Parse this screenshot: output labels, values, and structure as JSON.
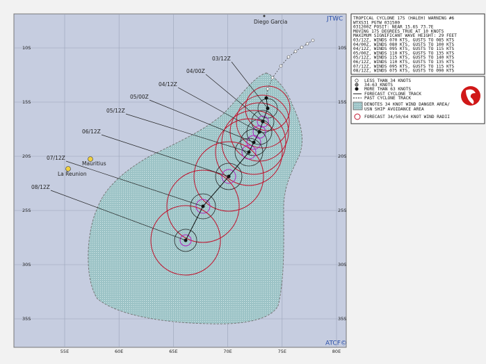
{
  "header": {
    "agency": "JTWC",
    "credit": "ATCF©"
  },
  "places": [
    "Diego Garcia",
    "Mauritius",
    "La Reunion"
  ],
  "grid": {
    "lat_labels": [
      "10S",
      "15S",
      "20S",
      "25S",
      "30S",
      "35S"
    ],
    "lon_labels": [
      "55E",
      "60E",
      "65E",
      "70E",
      "75E",
      "80E"
    ]
  },
  "track_labels": [
    "03/12Z",
    "04/00Z",
    "04/12Z",
    "05/00Z",
    "05/12Z",
    "06/12Z",
    "07/12Z",
    "08/12Z"
  ],
  "warning": {
    "lines": [
      "TROPICAL CYCLONE 17S (HALEH) WARNING #6",
      "WTXS31 PGTW 031500",
      "031200Z POSIT: NEAR 15.6S 73.7E",
      "MOVING 175 DEGREES TRUE AT 10 KNOTS",
      "MAXIMUM SIGNIFICANT WAVE HEIGHT: 29 FEET",
      "03/12Z, WINDS 070 KTS, GUSTS TO 085 KTS",
      "04/00Z, WINDS 080 KTS, GUSTS TO 100 KTS",
      "04/12Z, WINDS 095 KTS, GUSTS TO 115 KTS",
      "05/00Z, WINDS 110 KTS, GUSTS TO 135 KTS",
      "05/12Z, WINDS 115 KTS, GUSTS TO 140 KTS",
      "06/12Z, WINDS 110 KTS, GUSTS TO 135 KTS",
      "07/12Z, WINDS 095 KTS, GUSTS TO 115 KTS",
      "08/12Z, WINDS 075 KTS, GUSTS TO 090 KTS"
    ]
  },
  "legend": {
    "items": [
      "LESS THAN 34 KNOTS",
      "34-63 KNOTS",
      "MORE THAN 63 KNOTS",
      "FORECAST CYCLONE TRACK",
      "PAST CYCLONE TRACK",
      "DENOTES 34 KNOT WIND DANGER AREA/USN SHIP AVOIDANCE AREA",
      "FORECAST 34/50/64 KNOT WIND RADII"
    ]
  }
}
